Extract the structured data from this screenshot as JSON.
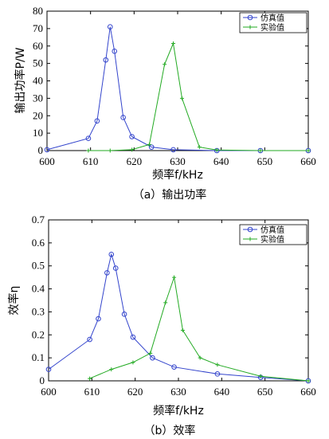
{
  "chart_data": [
    {
      "type": "line",
      "caption": "（a）输出功率",
      "xlabel": "频率f/kHz",
      "ylabel": "输出功率P/W",
      "xlim": [
        600,
        660
      ],
      "ylim": [
        0,
        80
      ],
      "xticks": [
        "600",
        "610",
        "620",
        "630",
        "640",
        "650",
        "660"
      ],
      "yticks": [
        "0",
        "10",
        "20",
        "30",
        "40",
        "50",
        "60",
        "70",
        "80"
      ],
      "grid": false,
      "legend_position": "top-right",
      "series": [
        {
          "name": "仿真值",
          "color": "#3344cc",
          "marker": "circle",
          "x": [
            600,
            609.5,
            611.5,
            613.5,
            614.5,
            615.5,
            617.5,
            619.5,
            624,
            629,
            639,
            649,
            660
          ],
          "y": [
            0.5,
            7,
            17,
            52,
            71,
            57,
            19,
            8,
            2,
            0.5,
            0,
            0,
            0
          ]
        },
        {
          "name": "实验值",
          "color": "#22aa22",
          "marker": "plus",
          "x": [
            609.5,
            614.5,
            619.5,
            623.5,
            627,
            629,
            631,
            635,
            639,
            649,
            660
          ],
          "y": [
            0,
            0,
            0.5,
            3.5,
            49.5,
            61.5,
            30,
            2,
            0.3,
            0,
            0
          ]
        }
      ]
    },
    {
      "type": "line",
      "caption": "（b）效率",
      "xlabel": "频率f/kHz",
      "ylabel": "效率η",
      "xlim": [
        600,
        660
      ],
      "ylim": [
        0,
        0.7
      ],
      "xticks": [
        "600",
        "610",
        "620",
        "630",
        "640",
        "650",
        "660"
      ],
      "yticks": [
        "0",
        "0.1",
        "0.2",
        "0.3",
        "0.4",
        "0.5",
        "0.6",
        "0.7"
      ],
      "grid": false,
      "legend_position": "top-right",
      "series": [
        {
          "name": "仿真值",
          "color": "#3344cc",
          "marker": "circle",
          "x": [
            600,
            609.5,
            611.5,
            613.5,
            614.5,
            615.5,
            617.5,
            619.5,
            624,
            629,
            639,
            649,
            660
          ],
          "y": [
            0.05,
            0.18,
            0.27,
            0.47,
            0.55,
            0.49,
            0.29,
            0.19,
            0.1,
            0.06,
            0.03,
            0.015,
            0
          ]
        },
        {
          "name": "实验值",
          "color": "#22aa22",
          "marker": "plus",
          "x": [
            609.5,
            614.5,
            619.5,
            623.5,
            627,
            629,
            631,
            635,
            639,
            649,
            660
          ],
          "y": [
            0.01,
            0.05,
            0.08,
            0.12,
            0.34,
            0.45,
            0.22,
            0.1,
            0.07,
            0.02,
            0
          ]
        }
      ]
    }
  ]
}
